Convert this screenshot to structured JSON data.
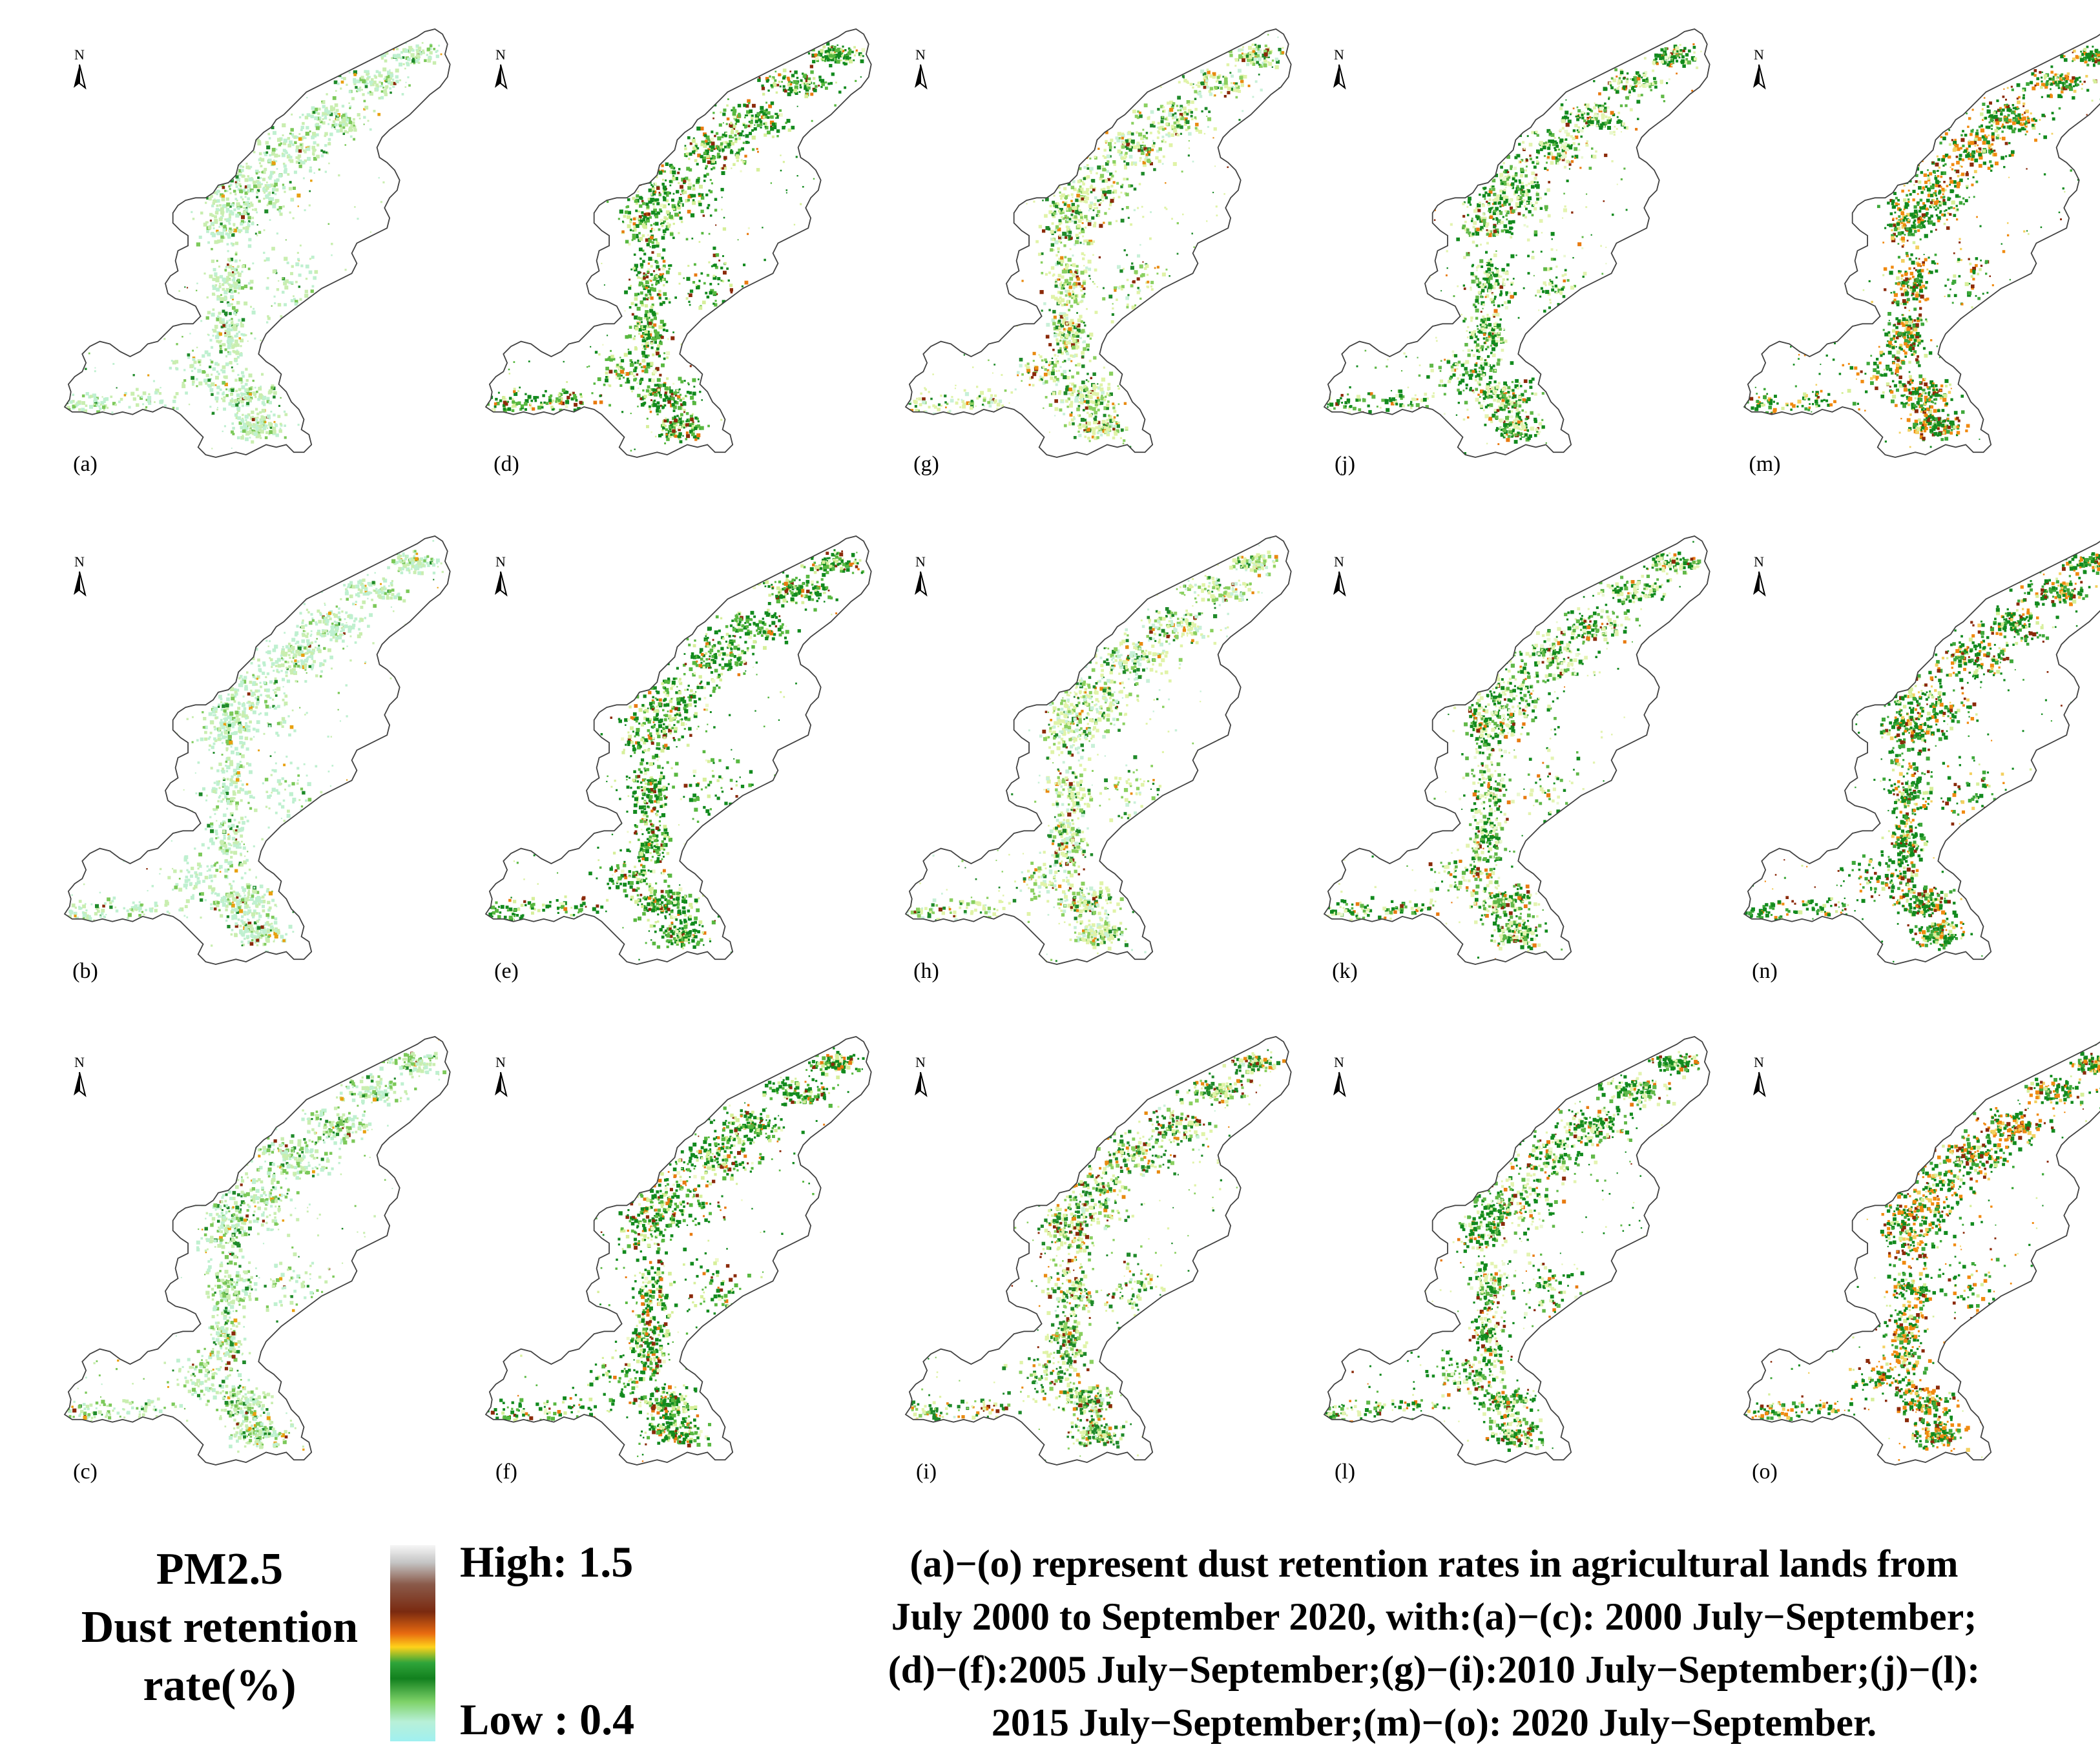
{
  "north_label": "N",
  "panels": [
    {
      "id": "a",
      "label": "(a)",
      "col": 0,
      "row": 0,
      "period": "2000 July-September",
      "month": 0,
      "colors": {
        "dark": "#1f8a2a",
        "mid": "#7cc95a",
        "light": "#c9eeb0",
        "hot": "#e8a010",
        "red": "#8b2a0a",
        "pale": "#bff0d0"
      },
      "palette_weights": {
        "dark": 0.06,
        "mid": 0.12,
        "light": 0.4,
        "hot": 0.02,
        "red": 0.01,
        "pale": 0.39
      }
    },
    {
      "id": "b",
      "label": "(b)",
      "col": 0,
      "row": 1,
      "period": "2000 July-September",
      "month": 1,
      "colors": {
        "dark": "#1f8a2a",
        "mid": "#7cc95a",
        "light": "#c9eeb0",
        "hot": "#e8a010",
        "red": "#8b2a0a",
        "pale": "#bff0d0"
      },
      "palette_weights": {
        "dark": 0.04,
        "mid": 0.1,
        "light": 0.36,
        "hot": 0.02,
        "red": 0.01,
        "pale": 0.47
      }
    },
    {
      "id": "c",
      "label": "(c)",
      "col": 0,
      "row": 2,
      "period": "2000 July-September",
      "month": 2,
      "colors": {
        "dark": "#1f8a2a",
        "mid": "#7cc95a",
        "light": "#c9eeb0",
        "hot": "#e8a010",
        "red": "#8b2a0a",
        "pale": "#bff0d0"
      },
      "palette_weights": {
        "dark": 0.1,
        "mid": 0.2,
        "light": 0.36,
        "hot": 0.03,
        "red": 0.02,
        "pale": 0.29
      }
    },
    {
      "id": "d",
      "label": "(d)",
      "col": 1,
      "row": 0,
      "period": "2005 July-September",
      "month": 0,
      "colors": {
        "dark": "#128a1e",
        "mid": "#58b840",
        "light": "#d6ef9a",
        "hot": "#e87a10",
        "red": "#8b2a0a",
        "pale": "#eef8c8"
      },
      "palette_weights": {
        "dark": 0.38,
        "mid": 0.26,
        "light": 0.18,
        "hot": 0.06,
        "red": 0.07,
        "pale": 0.05
      }
    },
    {
      "id": "e",
      "label": "(e)",
      "col": 1,
      "row": 1,
      "period": "2005 July-September",
      "month": 1,
      "colors": {
        "dark": "#128a1e",
        "mid": "#58b840",
        "light": "#d6ef9a",
        "hot": "#e87a10",
        "red": "#8b2a0a",
        "pale": "#eef8c8"
      },
      "palette_weights": {
        "dark": 0.42,
        "mid": 0.26,
        "light": 0.18,
        "hot": 0.04,
        "red": 0.05,
        "pale": 0.05
      }
    },
    {
      "id": "f",
      "label": "(f)",
      "col": 1,
      "row": 2,
      "period": "2005 July-September",
      "month": 2,
      "colors": {
        "dark": "#128a1e",
        "mid": "#58b840",
        "light": "#d6ef9a",
        "hot": "#e87a10",
        "red": "#8b2a0a",
        "pale": "#eef8c8"
      },
      "palette_weights": {
        "dark": 0.4,
        "mid": 0.24,
        "light": 0.18,
        "hot": 0.07,
        "red": 0.06,
        "pale": 0.05
      }
    },
    {
      "id": "g",
      "label": "(g)",
      "col": 2,
      "row": 0,
      "period": "2010 July-September",
      "month": 0,
      "colors": {
        "dark": "#1f8a2a",
        "mid": "#8ad060",
        "light": "#e0f3a8",
        "hot": "#e88a10",
        "red": "#8b2a0a",
        "pale": "#c8f0d8"
      },
      "palette_weights": {
        "dark": 0.18,
        "mid": 0.2,
        "light": 0.4,
        "hot": 0.05,
        "red": 0.04,
        "pale": 0.13
      }
    },
    {
      "id": "h",
      "label": "(h)",
      "col": 2,
      "row": 1,
      "period": "2010 July-September",
      "month": 1,
      "colors": {
        "dark": "#1f8a2a",
        "mid": "#8ad060",
        "light": "#e0f3a8",
        "hot": "#e88a10",
        "red": "#8b2a0a",
        "pale": "#c8f0d8"
      },
      "palette_weights": {
        "dark": 0.14,
        "mid": 0.2,
        "light": 0.38,
        "hot": 0.04,
        "red": 0.03,
        "pale": 0.21
      }
    },
    {
      "id": "i",
      "label": "(i)",
      "col": 2,
      "row": 2,
      "period": "2010 July-September",
      "month": 2,
      "colors": {
        "dark": "#1f8a2a",
        "mid": "#8ad060",
        "light": "#e0f3a8",
        "hot": "#e88a10",
        "red": "#8b2a0a",
        "pale": "#c8f0d8"
      },
      "palette_weights": {
        "dark": 0.32,
        "mid": 0.22,
        "light": 0.28,
        "hot": 0.08,
        "red": 0.07,
        "pale": 0.03
      }
    },
    {
      "id": "j",
      "label": "(j)",
      "col": 3,
      "row": 0,
      "period": "2015 July-September",
      "month": 0,
      "colors": {
        "dark": "#128a1e",
        "mid": "#60b848",
        "light": "#e3f3b0",
        "hot": "#e87a10",
        "red": "#8b2a0a",
        "pale": "#eaf8d0"
      },
      "palette_weights": {
        "dark": 0.36,
        "mid": 0.22,
        "light": 0.26,
        "hot": 0.06,
        "red": 0.05,
        "pale": 0.05
      }
    },
    {
      "id": "k",
      "label": "(k)",
      "col": 3,
      "row": 1,
      "period": "2015 July-September",
      "month": 1,
      "colors": {
        "dark": "#128a1e",
        "mid": "#60b848",
        "light": "#e3f3b0",
        "hot": "#e87a10",
        "red": "#8b2a0a",
        "pale": "#eaf8d0"
      },
      "palette_weights": {
        "dark": 0.3,
        "mid": 0.24,
        "light": 0.32,
        "hot": 0.05,
        "red": 0.03,
        "pale": 0.06
      }
    },
    {
      "id": "l",
      "label": "(l)",
      "col": 3,
      "row": 2,
      "period": "2015 July-September",
      "month": 2,
      "colors": {
        "dark": "#128a1e",
        "mid": "#60b848",
        "light": "#e3f3b0",
        "hot": "#e87a10",
        "red": "#8b2a0a",
        "pale": "#eaf8d0"
      },
      "palette_weights": {
        "dark": 0.38,
        "mid": 0.22,
        "light": 0.24,
        "hot": 0.07,
        "red": 0.05,
        "pale": 0.04
      }
    },
    {
      "id": "m",
      "label": "(m)",
      "col": 4,
      "row": 0,
      "period": "2020 July-September",
      "month": 0,
      "colors": {
        "dark": "#128a1e",
        "mid": "#3ea83a",
        "light": "#d6ef9a",
        "hot": "#f08a10",
        "red": "#8b2a0a",
        "pale": "#f3d060"
      },
      "palette_weights": {
        "dark": 0.34,
        "mid": 0.18,
        "light": 0.08,
        "hot": 0.22,
        "red": 0.1,
        "pale": 0.08
      }
    },
    {
      "id": "n",
      "label": "(n)",
      "col": 4,
      "row": 1,
      "period": "2020 July-September",
      "month": 1,
      "colors": {
        "dark": "#128a1e",
        "mid": "#3ea83a",
        "light": "#d6ef9a",
        "hot": "#f08a10",
        "red": "#8b2a0a",
        "pale": "#f3d060"
      },
      "palette_weights": {
        "dark": 0.42,
        "mid": 0.2,
        "light": 0.1,
        "hot": 0.12,
        "red": 0.1,
        "pale": 0.06
      }
    },
    {
      "id": "o",
      "label": "(o)",
      "col": 4,
      "row": 2,
      "period": "2020 July-September",
      "month": 2,
      "colors": {
        "dark": "#128a1e",
        "mid": "#3ea83a",
        "light": "#d6ef9a",
        "hot": "#f08a10",
        "red": "#8b2a0a",
        "pale": "#f3d060"
      },
      "palette_weights": {
        "dark": 0.32,
        "mid": 0.16,
        "light": 0.08,
        "hot": 0.26,
        "red": 0.1,
        "pale": 0.08
      }
    }
  ],
  "legend": {
    "title_lines": [
      "PM2.5",
      "Dust retention",
      "rate(%)"
    ],
    "high": "High: 1.5",
    "low": "Low : 0.4",
    "high_value": 1.5,
    "low_value": 0.4,
    "colorbar_colors": [
      "#f7f7f7",
      "#c4c4c4",
      "#8a5a4a",
      "#7a2a10",
      "#e86a10",
      "#ffd21a",
      "#2fa53a",
      "#12801e",
      "#7fd36a",
      "#b8f0d8",
      "#a0f0f0"
    ]
  },
  "caption_lines": [
    "(a)−(o) represent dust retention rates in agricultural lands  from",
    "July 2000 to September 2020, with:(a)−(c): 2000 July−September;",
    "(d)−(f):2005 July−September;(g)−(i):2010 July−September;(j)−(l):",
    "2015 July−September;(m)−(o): 2020 July−September."
  ]
}
